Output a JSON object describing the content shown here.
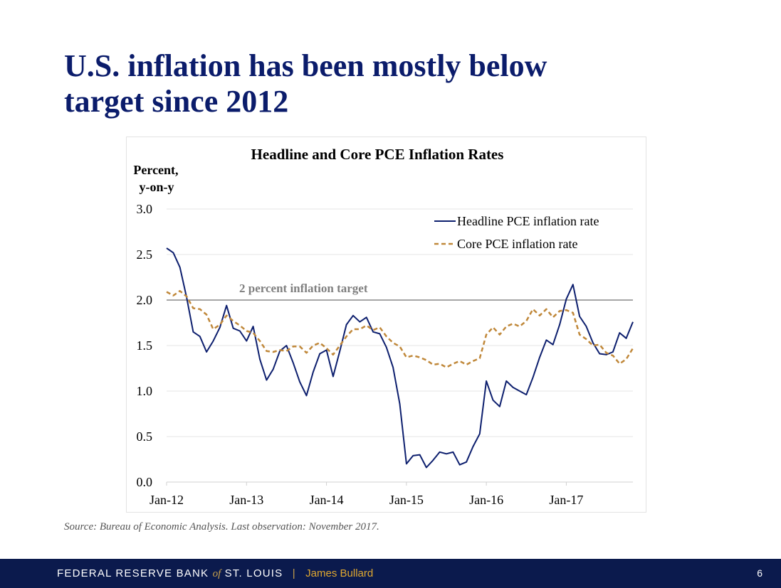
{
  "slide": {
    "title_line1": "U.S. inflation has been mostly below",
    "title_line2": "target since 2012",
    "source": "Source: Bureau of Economic Analysis. Last observation: November 2017.",
    "page_number": "6"
  },
  "footer": {
    "org_part1": "FEDERAL RESERVE BANK",
    "org_of": "of",
    "org_part2": "ST. LOUIS",
    "separator": "|",
    "author": "James Bullard"
  },
  "colors": {
    "title": "#0b1c6b",
    "headline_series": "#0d1f6e",
    "core_series": "#c0883a",
    "target_line": "#a6a6a6",
    "footer_bg": "#0b1a4d",
    "footer_accent": "#e0a830"
  },
  "chart_data": {
    "type": "line",
    "title": "Headline and Core PCE Inflation Rates",
    "ylabel_line1": "Percent,",
    "ylabel_line2": "y-on-y",
    "ylim": [
      0.0,
      3.0
    ],
    "yticks": [
      "0.0",
      "0.5",
      "1.0",
      "1.5",
      "2.0",
      "2.5",
      "3.0"
    ],
    "xlim": [
      "2012-01",
      "2017-11"
    ],
    "xticks": [
      {
        "date": "2012-01",
        "label": "Jan-12"
      },
      {
        "date": "2013-01",
        "label": "Jan-13"
      },
      {
        "date": "2014-01",
        "label": "Jan-14"
      },
      {
        "date": "2015-01",
        "label": "Jan-15"
      },
      {
        "date": "2016-01",
        "label": "Jan-16"
      },
      {
        "date": "2017-01",
        "label": "Jan-17"
      }
    ],
    "grid": true,
    "legend": "top-right",
    "reference_line": {
      "value": 2.0,
      "label": "2 percent inflation target"
    },
    "x": [
      "2012-01",
      "2012-02",
      "2012-03",
      "2012-04",
      "2012-05",
      "2012-06",
      "2012-07",
      "2012-08",
      "2012-09",
      "2012-10",
      "2012-11",
      "2012-12",
      "2013-01",
      "2013-02",
      "2013-03",
      "2013-04",
      "2013-05",
      "2013-06",
      "2013-07",
      "2013-08",
      "2013-09",
      "2013-10",
      "2013-11",
      "2013-12",
      "2014-01",
      "2014-02",
      "2014-03",
      "2014-04",
      "2014-05",
      "2014-06",
      "2014-07",
      "2014-08",
      "2014-09",
      "2014-10",
      "2014-11",
      "2014-12",
      "2015-01",
      "2015-02",
      "2015-03",
      "2015-04",
      "2015-05",
      "2015-06",
      "2015-07",
      "2015-08",
      "2015-09",
      "2015-10",
      "2015-11",
      "2015-12",
      "2016-01",
      "2016-02",
      "2016-03",
      "2016-04",
      "2016-05",
      "2016-06",
      "2016-07",
      "2016-08",
      "2016-09",
      "2016-10",
      "2016-11",
      "2016-12",
      "2017-01",
      "2017-02",
      "2017-03",
      "2017-04",
      "2017-05",
      "2017-06",
      "2017-07",
      "2017-08",
      "2017-09",
      "2017-10",
      "2017-11"
    ],
    "series": [
      {
        "name": "Headline PCE inflation rate",
        "style": "solid",
        "values": [
          2.57,
          2.52,
          2.36,
          2.03,
          1.65,
          1.6,
          1.43,
          1.55,
          1.7,
          1.94,
          1.69,
          1.66,
          1.55,
          1.71,
          1.35,
          1.12,
          1.24,
          1.44,
          1.5,
          1.31,
          1.1,
          0.95,
          1.21,
          1.41,
          1.45,
          1.16,
          1.44,
          1.73,
          1.83,
          1.76,
          1.81,
          1.65,
          1.63,
          1.48,
          1.26,
          0.86,
          0.2,
          0.29,
          0.3,
          0.16,
          0.24,
          0.33,
          0.31,
          0.33,
          0.19,
          0.22,
          0.39,
          0.53,
          1.11,
          0.9,
          0.83,
          1.11,
          1.04,
          1.0,
          0.96,
          1.15,
          1.37,
          1.56,
          1.51,
          1.73,
          2.01,
          2.17,
          1.82,
          1.71,
          1.53,
          1.41,
          1.4,
          1.43,
          1.64,
          1.58,
          1.76
        ]
      },
      {
        "name": "Core PCE inflation rate",
        "style": "dashed",
        "values": [
          2.09,
          2.05,
          2.1,
          2.04,
          1.91,
          1.9,
          1.84,
          1.68,
          1.73,
          1.83,
          1.77,
          1.72,
          1.66,
          1.64,
          1.55,
          1.44,
          1.43,
          1.45,
          1.44,
          1.49,
          1.49,
          1.42,
          1.5,
          1.53,
          1.47,
          1.4,
          1.5,
          1.6,
          1.68,
          1.68,
          1.72,
          1.67,
          1.7,
          1.6,
          1.53,
          1.49,
          1.37,
          1.39,
          1.37,
          1.34,
          1.29,
          1.3,
          1.26,
          1.3,
          1.33,
          1.29,
          1.33,
          1.36,
          1.62,
          1.7,
          1.62,
          1.71,
          1.74,
          1.71,
          1.77,
          1.9,
          1.83,
          1.9,
          1.81,
          1.88,
          1.89,
          1.86,
          1.62,
          1.57,
          1.5,
          1.51,
          1.42,
          1.39,
          1.3,
          1.35,
          1.47
        ]
      }
    ]
  }
}
